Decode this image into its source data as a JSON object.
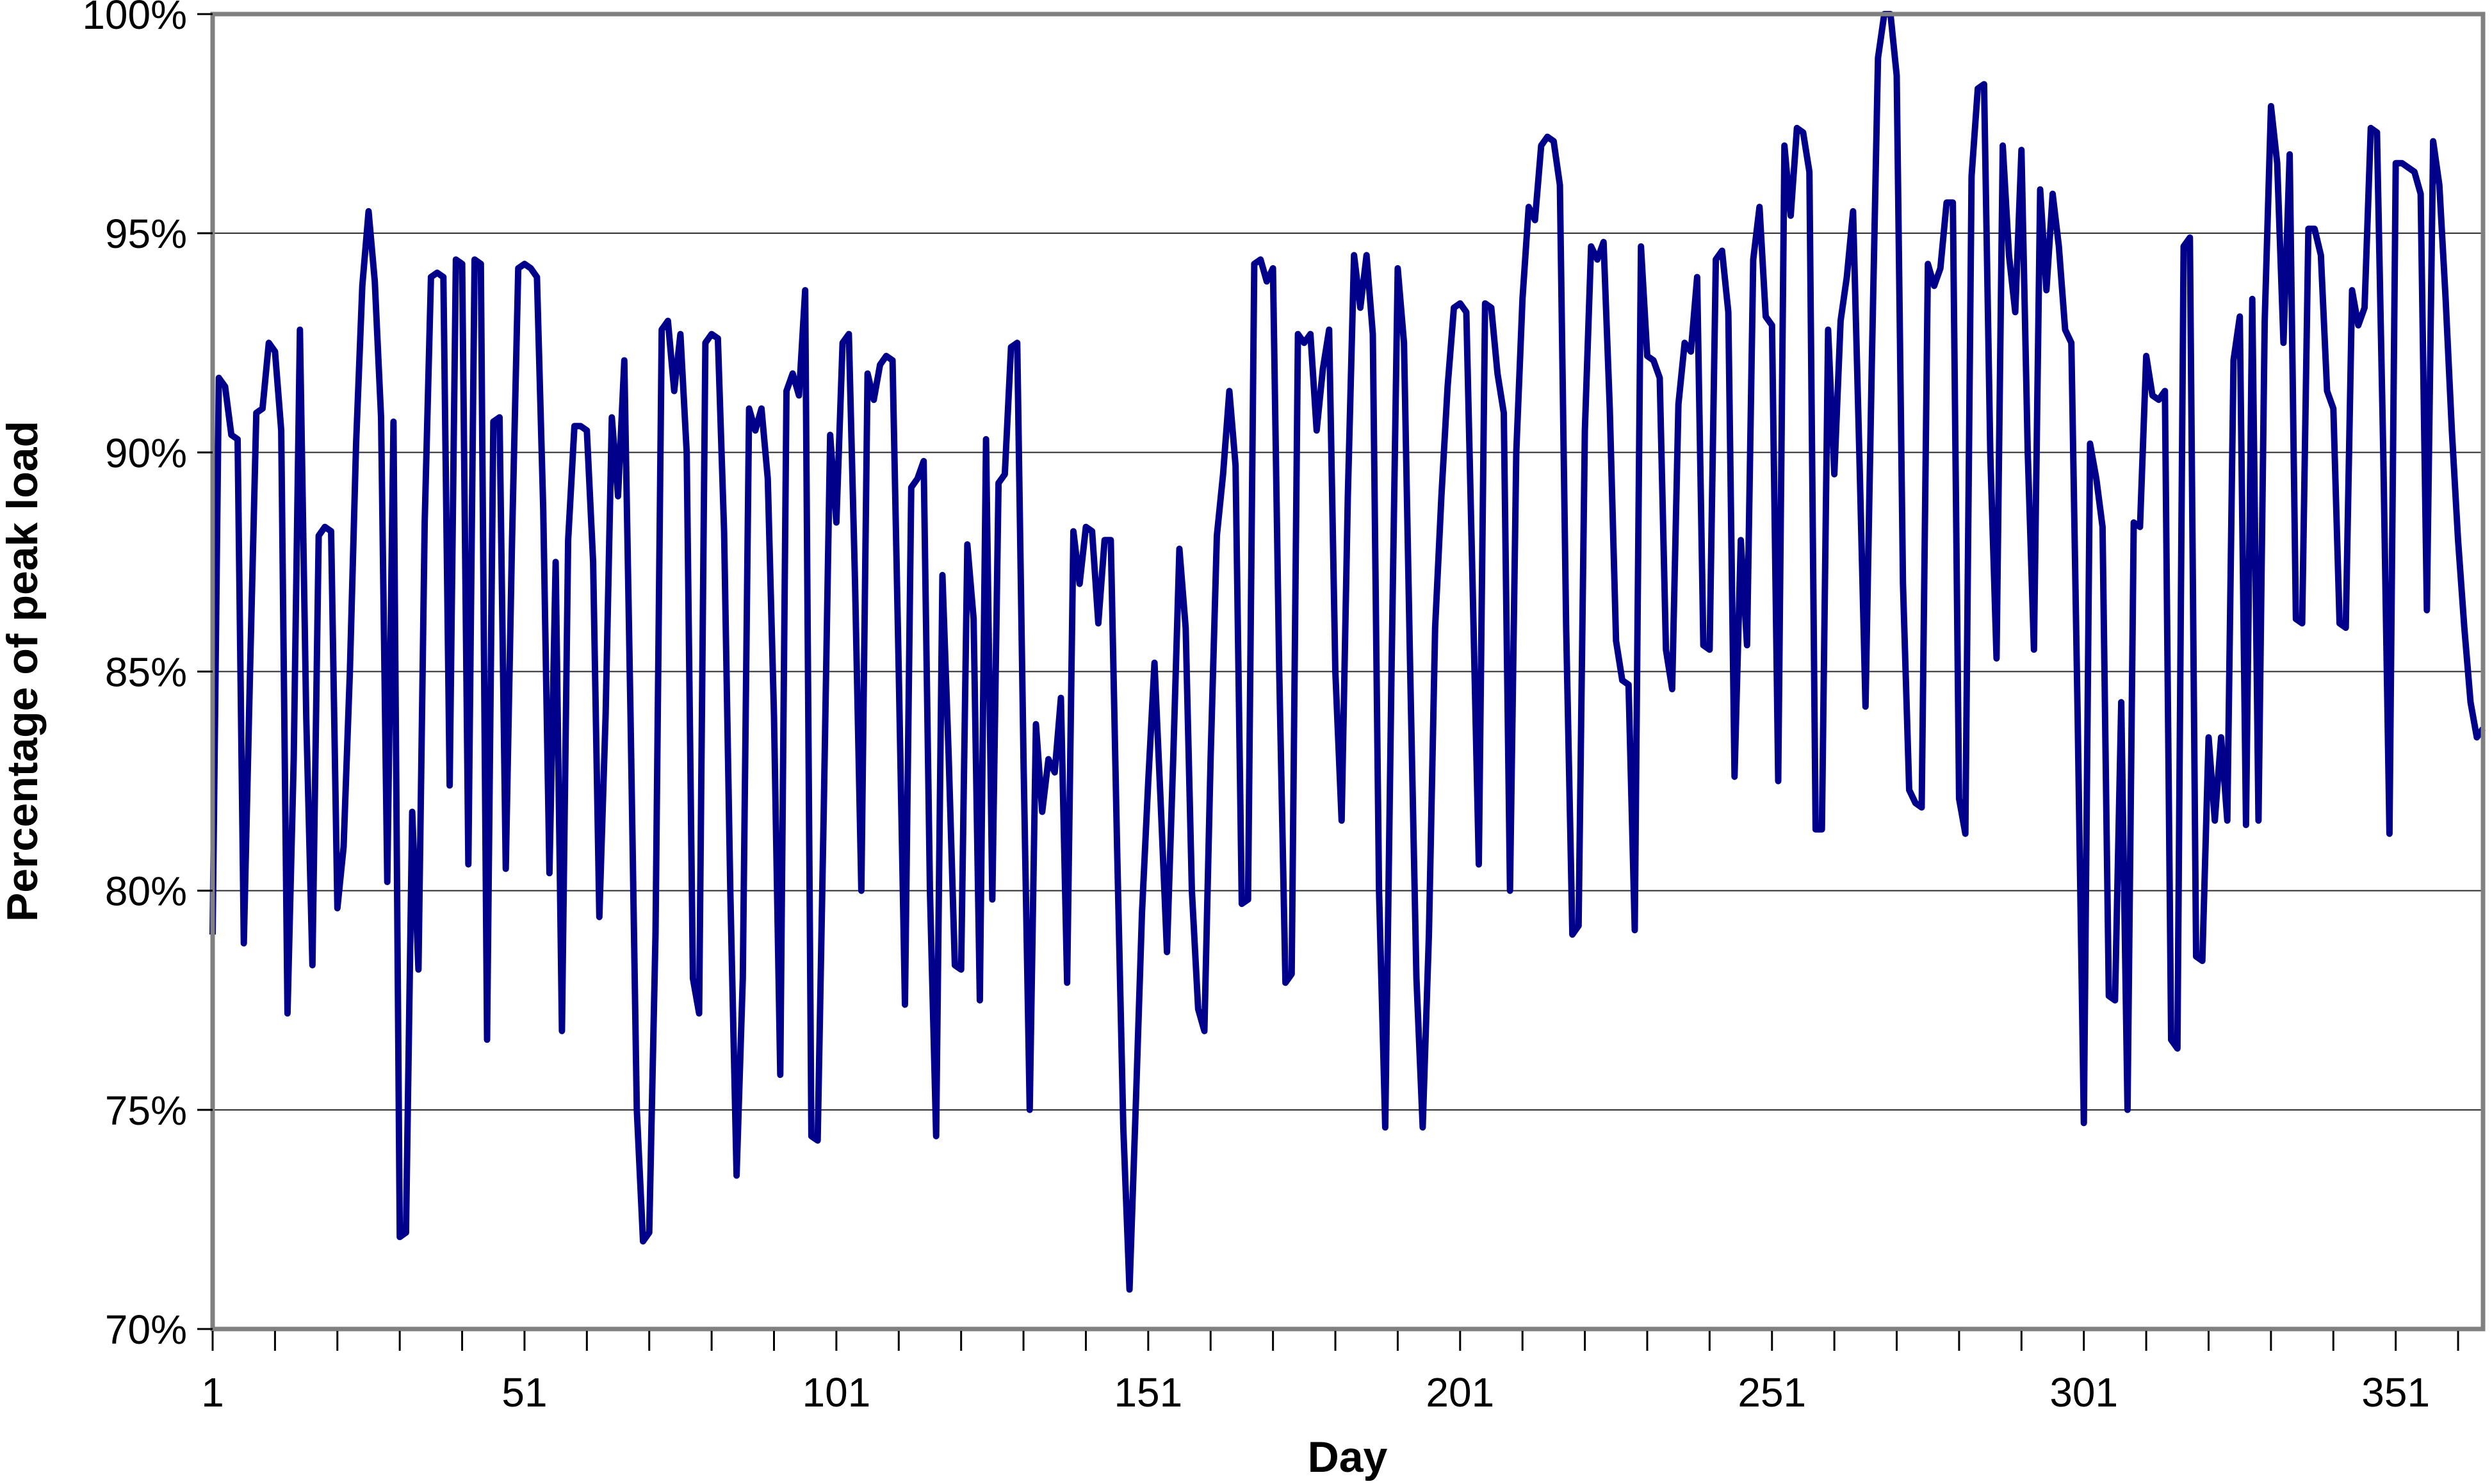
{
  "chart_data": {
    "type": "line",
    "title": "",
    "xlabel": "Day",
    "ylabel": "Percentage of peak load",
    "xlim": [
      1,
      365
    ],
    "ylim": [
      70,
      100
    ],
    "grid": "horizontal",
    "legend": "none",
    "line_color": "#00008B",
    "frame_color": "#808080",
    "grid_color": "#2a2a2a",
    "tick_color": "#000000",
    "background_color": "#ffffff",
    "y_ticks": [
      70,
      75,
      80,
      85,
      90,
      95,
      100
    ],
    "y_tick_labels": [
      "70%",
      "75%",
      "80%",
      "85%",
      "90%",
      "95%",
      "100%"
    ],
    "x_minor_tick_step": 10,
    "x_labeled_ticks": [
      1,
      51,
      101,
      151,
      201,
      251,
      301,
      351
    ],
    "x_tick_labels": [
      "1",
      "51",
      "101",
      "151",
      "201",
      "251",
      "301",
      "351"
    ],
    "x_start_day": 1,
    "values": [
      79.0,
      91.7,
      91.5,
      90.4,
      90.3,
      78.8,
      85.0,
      90.9,
      91.0,
      92.5,
      92.3,
      90.5,
      77.2,
      83.0,
      92.8,
      84.0,
      78.3,
      88.1,
      88.3,
      88.2,
      79.6,
      81.0,
      85.0,
      90.2,
      93.8,
      95.5,
      93.9,
      90.8,
      80.2,
      90.7,
      72.1,
      72.2,
      81.8,
      78.2,
      88.4,
      94.0,
      94.1,
      94.0,
      82.4,
      94.4,
      94.3,
      80.6,
      94.4,
      94.3,
      76.6,
      90.7,
      90.8,
      80.5,
      88.0,
      94.2,
      94.3,
      94.2,
      94.0,
      88.7,
      80.4,
      87.5,
      76.8,
      88.0,
      90.6,
      90.6,
      90.5,
      87.5,
      79.4,
      84.0,
      90.8,
      89.0,
      92.1,
      84.0,
      75.0,
      72.0,
      72.2,
      79.0,
      92.8,
      93.0,
      91.4,
      92.7,
      90.0,
      78.0,
      77.2,
      92.5,
      92.7,
      92.6,
      88.2,
      80.0,
      73.5,
      78.0,
      91.0,
      90.5,
      91.0,
      89.4,
      84.0,
      75.8,
      91.4,
      91.8,
      91.3,
      93.7,
      74.4,
      74.3,
      82.0,
      90.4,
      88.4,
      92.5,
      92.7,
      87.0,
      80.0,
      91.8,
      91.2,
      92.0,
      92.2,
      92.1,
      85.0,
      77.4,
      89.2,
      89.4,
      89.8,
      80.0,
      74.4,
      87.2,
      83.1,
      78.3,
      78.2,
      87.9,
      86.2,
      77.5,
      90.3,
      79.8,
      89.3,
      89.5,
      92.4,
      92.5,
      83.0,
      75.0,
      83.8,
      81.8,
      83.0,
      82.7,
      84.4,
      77.9,
      88.2,
      87.0,
      88.3,
      88.2,
      86.1,
      88.0,
      88.0,
      81.0,
      74.6,
      70.9,
      75.1,
      79.5,
      82.5,
      85.2,
      82.0,
      78.6,
      83.0,
      87.8,
      86.0,
      80.0,
      77.3,
      76.8,
      83.0,
      88.1,
      89.5,
      91.4,
      89.7,
      79.7,
      79.8,
      94.3,
      94.4,
      93.9,
      94.2,
      85.0,
      77.9,
      78.1,
      92.7,
      92.5,
      92.7,
      90.5,
      91.9,
      92.8,
      85.0,
      81.6,
      89.0,
      94.5,
      93.3,
      94.5,
      92.7,
      80.0,
      74.6,
      85.0,
      94.2,
      92.5,
      85.0,
      78.0,
      74.6,
      79.0,
      86.0,
      89.0,
      91.5,
      93.3,
      93.4,
      93.2,
      87.0,
      80.6,
      93.4,
      93.3,
      91.8,
      90.9,
      80.0,
      90.0,
      93.5,
      95.6,
      95.3,
      97.0,
      97.2,
      97.1,
      96.1,
      86.0,
      79.0,
      79.2,
      90.5,
      94.7,
      94.4,
      94.8,
      91.0,
      85.7,
      84.8,
      84.7,
      79.1,
      94.7,
      92.2,
      92.1,
      91.7,
      85.5,
      84.6,
      91.1,
      92.5,
      92.3,
      94.0,
      85.6,
      85.5,
      94.4,
      94.6,
      93.2,
      82.6,
      88.0,
      85.6,
      94.4,
      95.6,
      93.1,
      92.9,
      82.5,
      97.0,
      95.4,
      97.4,
      97.3,
      96.4,
      81.4,
      81.4,
      92.8,
      89.5,
      93.0,
      94.0,
      95.5,
      90.0,
      84.2,
      92.0,
      99.0,
      100.0,
      100.0,
      98.6,
      87.0,
      82.3,
      82.0,
      81.9,
      94.3,
      93.8,
      94.2,
      95.7,
      95.7,
      82.1,
      81.3,
      96.3,
      98.3,
      98.4,
      90.0,
      85.3,
      97.0,
      94.5,
      93.2,
      96.9,
      90.0,
      85.5,
      96.0,
      93.7,
      95.9,
      94.7,
      92.8,
      92.5,
      84.0,
      74.7,
      90.2,
      89.4,
      88.3,
      77.6,
      77.5,
      84.3,
      75.0,
      88.4,
      88.3,
      92.2,
      91.3,
      91.2,
      91.4,
      76.6,
      76.4,
      94.7,
      94.9,
      78.5,
      78.4,
      83.5,
      81.6,
      83.5,
      81.6,
      92.1,
      93.1,
      81.5,
      93.5,
      81.6,
      93.0,
      97.9,
      96.6,
      92.5,
      96.8,
      86.2,
      86.1,
      95.1,
      95.1,
      94.5,
      91.4,
      91.0,
      86.1,
      86.0,
      93.7,
      92.9,
      93.3,
      97.4,
      97.3,
      90.0,
      81.3,
      96.6,
      96.6,
      96.5,
      96.4,
      95.9,
      86.4,
      97.1,
      96.1,
      93.5,
      90.5,
      88.0,
      86.0,
      84.3,
      83.5,
      83.7
    ]
  }
}
